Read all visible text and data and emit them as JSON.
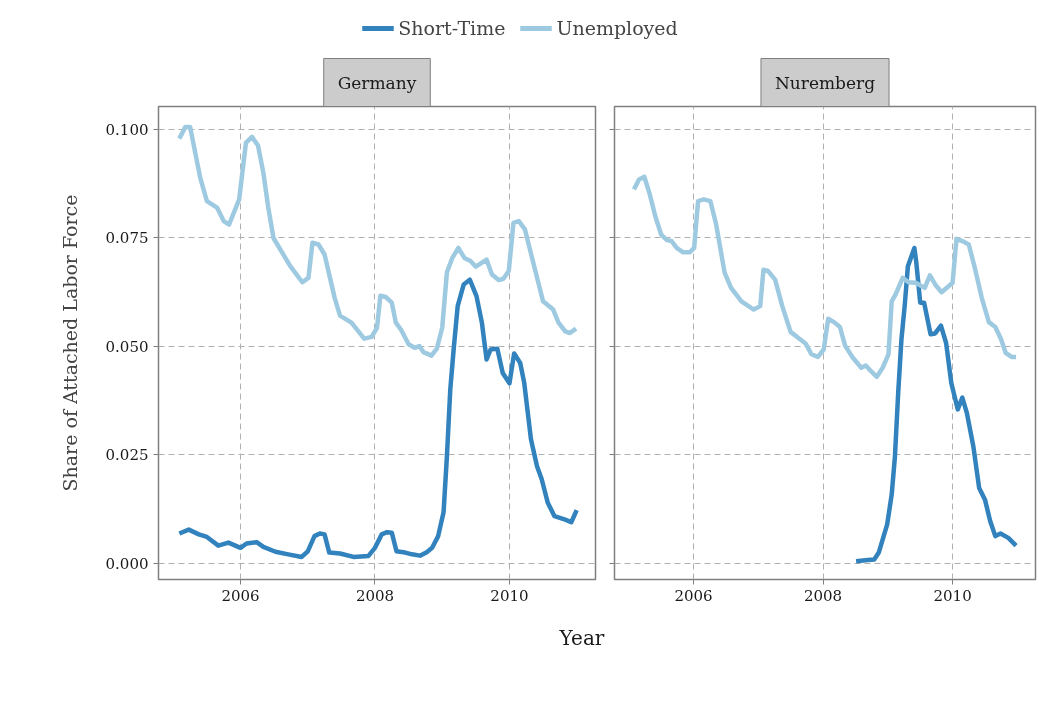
{
  "chart_data": [
    {
      "type": "line",
      "title": "Germany",
      "ylabel": "Share of Attached Labor Force",
      "xlabel": "Year",
      "legend": "top",
      "grid": true,
      "line_style": "solid",
      "xlim": [
        2004.78,
        2011.28
      ],
      "ylim": [
        -0.0037,
        0.1053
      ],
      "xticks": [
        2006,
        2008,
        2010
      ],
      "yticks": [
        {
          "value": 0,
          "label": "0.000"
        },
        {
          "value": 0.025,
          "label": "0.025"
        },
        {
          "value": 0.05,
          "label": "0.050"
        },
        {
          "value": 0.075,
          "label": "0.075"
        },
        {
          "value": 0.1,
          "label": "0.100"
        }
      ],
      "series": [
        {
          "name": "Short-Time",
          "color": "#3182bd",
          "x": [
            2005.09,
            2005.23,
            2005.38,
            2005.5,
            2005.67,
            2005.82,
            2006.0,
            2006.09,
            2006.24,
            2006.34,
            2006.52,
            2006.71,
            2006.91,
            2007.0,
            2007.1,
            2007.18,
            2007.25,
            2007.32,
            2007.48,
            2007.68,
            2007.9,
            2008.0,
            2008.1,
            2008.18,
            2008.25,
            2008.32,
            2008.45,
            2008.55,
            2008.67,
            2008.77,
            2008.85,
            2008.94,
            2009.02,
            2009.07,
            2009.12,
            2009.17,
            2009.23,
            2009.32,
            2009.41,
            2009.51,
            2009.59,
            2009.66,
            2009.72,
            2009.82,
            2009.9,
            2010.0,
            2010.07,
            2010.16,
            2010.22,
            2010.32,
            2010.41,
            2010.48,
            2010.57,
            2010.67,
            2010.83,
            2010.92,
            2011.0
          ],
          "values": [
            0.0069,
            0.0078,
            0.0067,
            0.0061,
            0.0041,
            0.0048,
            0.0036,
            0.0046,
            0.0049,
            0.0038,
            0.0027,
            0.0021,
            0.0015,
            0.0028,
            0.0063,
            0.0069,
            0.0067,
            0.0025,
            0.0023,
            0.0015,
            0.0017,
            0.0036,
            0.0067,
            0.0072,
            0.0071,
            0.0028,
            0.0025,
            0.0021,
            0.0018,
            0.0026,
            0.0036,
            0.0063,
            0.0118,
            0.0247,
            0.0401,
            0.0493,
            0.0593,
            0.0643,
            0.0654,
            0.0616,
            0.0555,
            0.047,
            0.0493,
            0.0495,
            0.0439,
            0.0415,
            0.0484,
            0.0462,
            0.0416,
            0.0286,
            0.0224,
            0.0194,
            0.014,
            0.0109,
            0.0101,
            0.0095,
            0.0123
          ]
        },
        {
          "name": "Unemployed",
          "color": "#9ecae1",
          "x": [
            2005.09,
            2005.18,
            2005.25,
            2005.4,
            2005.5,
            2005.65,
            2005.75,
            2005.83,
            2005.98,
            2006.08,
            2006.17,
            2006.26,
            2006.34,
            2006.41,
            2006.49,
            2006.74,
            2006.92,
            2007.01,
            2007.07,
            2007.16,
            2007.25,
            2007.4,
            2007.48,
            2007.65,
            2007.84,
            2007.95,
            2008.03,
            2008.08,
            2008.16,
            2008.25,
            2008.31,
            2008.39,
            2008.5,
            2008.59,
            2008.66,
            2008.72,
            2008.84,
            2008.92,
            2009.0,
            2009.07,
            2009.15,
            2009.24,
            2009.33,
            2009.42,
            2009.5,
            2009.66,
            2009.74,
            2009.84,
            2009.91,
            2009.99,
            2010.06,
            2010.14,
            2010.23,
            2010.33,
            2010.43,
            2010.5,
            2010.65,
            2010.73,
            2010.83,
            2010.9,
            2010.99
          ],
          "values": [
            0.0979,
            0.1006,
            0.1006,
            0.0889,
            0.0835,
            0.082,
            0.0789,
            0.0781,
            0.0839,
            0.0969,
            0.0983,
            0.0963,
            0.09,
            0.0823,
            0.075,
            0.0685,
            0.0648,
            0.0658,
            0.0739,
            0.0735,
            0.0712,
            0.0612,
            0.0571,
            0.0555,
            0.0518,
            0.0522,
            0.0543,
            0.0617,
            0.0614,
            0.0601,
            0.0555,
            0.0538,
            0.0505,
            0.0497,
            0.0501,
            0.0487,
            0.0479,
            0.0495,
            0.0543,
            0.0671,
            0.0704,
            0.0727,
            0.0704,
            0.0697,
            0.0684,
            0.07,
            0.0666,
            0.0653,
            0.0656,
            0.0674,
            0.0785,
            0.0789,
            0.077,
            0.0708,
            0.0647,
            0.0604,
            0.0585,
            0.0555,
            0.0535,
            0.0531,
            0.0541
          ]
        }
      ]
    },
    {
      "type": "line",
      "title": "Nuremberg",
      "grid": true,
      "line_style": "solid",
      "tick_labels": "x",
      "xlim": [
        2004.78,
        2011.28
      ],
      "ylim": [
        -0.0037,
        0.1053
      ],
      "xticks": [
        2006,
        2008,
        2010
      ],
      "yticks": [
        {
          "value": 0,
          "label": null
        },
        {
          "value": 0.025,
          "label": null
        },
        {
          "value": 0.05,
          "label": null
        },
        {
          "value": 0.075,
          "label": null
        },
        {
          "value": 0.1,
          "label": null
        }
      ],
      "series": [
        {
          "color": "#3182bd",
          "x": [
            2008.51,
            2008.69,
            2008.79,
            2008.86,
            2008.99,
            2009.06,
            2009.11,
            2009.16,
            2009.21,
            2009.26,
            2009.31,
            2009.41,
            2009.44,
            2009.5,
            2009.56,
            2009.66,
            2009.73,
            2009.82,
            2009.9,
            2009.98,
            2010.08,
            2010.15,
            2010.22,
            2010.32,
            2010.41,
            2010.5,
            2010.58,
            2010.66,
            2010.74,
            2010.86,
            2010.98
          ],
          "values": [
            0.0005,
            0.0008,
            0.0009,
            0.0025,
            0.009,
            0.0159,
            0.0247,
            0.0393,
            0.0516,
            0.0593,
            0.0685,
            0.0727,
            0.0693,
            0.0601,
            0.0601,
            0.0528,
            0.053,
            0.0548,
            0.0508,
            0.0416,
            0.0355,
            0.0382,
            0.0347,
            0.027,
            0.0174,
            0.0147,
            0.0098,
            0.0063,
            0.0069,
            0.0059,
            0.0041
          ]
        },
        {
          "color": "#9ecae1",
          "x": [
            2005.08,
            2005.16,
            2005.24,
            2005.32,
            2005.41,
            2005.5,
            2005.59,
            2005.66,
            2005.74,
            2005.84,
            2005.94,
            2006.01,
            2006.07,
            2006.16,
            2006.26,
            2006.35,
            2006.48,
            2006.58,
            2006.74,
            2006.93,
            2007.03,
            2007.08,
            2007.15,
            2007.26,
            2007.37,
            2007.5,
            2007.6,
            2007.73,
            2007.82,
            2007.92,
            2008.01,
            2008.08,
            2008.18,
            2008.26,
            2008.34,
            2008.46,
            2008.59,
            2008.66,
            2008.74,
            2008.83,
            2008.92,
            2009.01,
            2009.06,
            2009.12,
            2009.23,
            2009.32,
            2009.43,
            2009.57,
            2009.65,
            2009.74,
            2009.83,
            2010.0,
            2010.06,
            2010.15,
            2010.25,
            2010.35,
            2010.45,
            2010.56,
            2010.66,
            2010.75,
            2010.82,
            2010.91,
            2010.98
          ],
          "values": [
            0.0862,
            0.0885,
            0.0891,
            0.0853,
            0.08,
            0.0758,
            0.0745,
            0.0743,
            0.0727,
            0.0717,
            0.0717,
            0.0727,
            0.0835,
            0.0839,
            0.0835,
            0.0781,
            0.067,
            0.0635,
            0.0604,
            0.0585,
            0.0593,
            0.0677,
            0.0674,
            0.0654,
            0.0593,
            0.0533,
            0.0522,
            0.0507,
            0.0482,
            0.0476,
            0.0493,
            0.0564,
            0.0555,
            0.0545,
            0.0502,
            0.0474,
            0.0451,
            0.0456,
            0.0443,
            0.043,
            0.0451,
            0.0482,
            0.0604,
            0.062,
            0.0658,
            0.0648,
            0.0647,
            0.0635,
            0.0664,
            0.0641,
            0.0625,
            0.0647,
            0.0748,
            0.0743,
            0.0735,
            0.0677,
            0.0612,
            0.0556,
            0.0545,
            0.0516,
            0.0485,
            0.0476,
            0.0476
          ]
        }
      ]
    }
  ]
}
